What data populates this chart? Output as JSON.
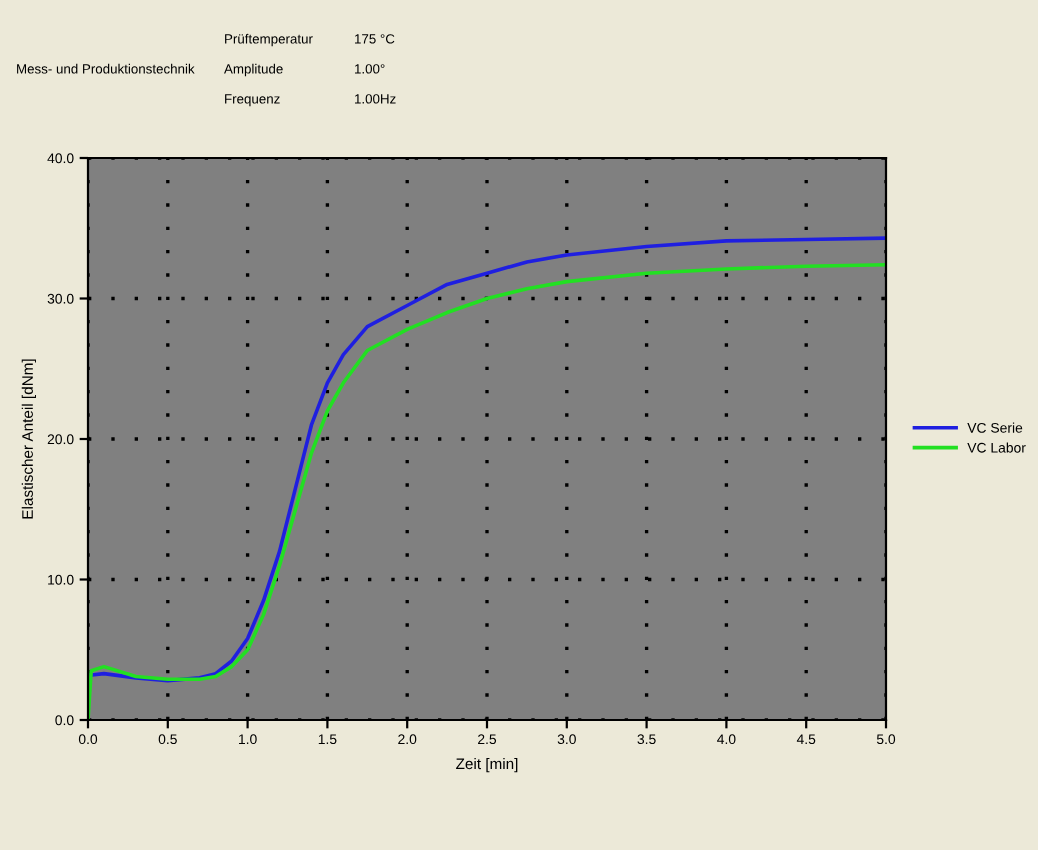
{
  "chart_data": {
    "type": "line",
    "subtitle": "Mess- und Produktionstechnik",
    "annotations": [
      "Prüftemperatur",
      "175 °C",
      "Amplitude",
      "1.00°",
      "Frequenz",
      "1.00Hz"
    ],
    "xlabel": "Zeit [min]",
    "ylabel": "Elastischer Anteil [dNm]",
    "xlim": [
      0,
      5
    ],
    "ylim": [
      0,
      40
    ],
    "xticks": [
      {
        "value": 0,
        "label": "0.0"
      },
      {
        "value": 0.5,
        "label": "0.5"
      },
      {
        "value": 1,
        "label": "1.0"
      },
      {
        "value": 1.5,
        "label": "1.5"
      },
      {
        "value": 2,
        "label": "2.0"
      },
      {
        "value": 2.5,
        "label": "2.5"
      },
      {
        "value": 3,
        "label": "3.0"
      },
      {
        "value": 3.5,
        "label": "3.5"
      },
      {
        "value": 4,
        "label": "4.0"
      },
      {
        "value": 4.5,
        "label": "4.5"
      },
      {
        "value": 5,
        "label": "5.0"
      }
    ],
    "yticks": [
      {
        "value": 0,
        "label": "0.0"
      },
      {
        "value": 10,
        "label": "10.0"
      },
      {
        "value": 20,
        "label": "20.0"
      },
      {
        "value": 30,
        "label": "30.0"
      },
      {
        "value": 40,
        "label": "40.0"
      }
    ],
    "grid": true,
    "legend": "right",
    "marker": "none",
    "line_style": "solid",
    "series": [
      {
        "name": "VC Serie",
        "color": "#1f1fe0",
        "x": [
          0.02,
          0.1,
          0.3,
          0.5,
          0.7,
          0.8,
          0.9,
          1.0,
          1.1,
          1.2,
          1.3,
          1.4,
          1.5,
          1.6,
          1.75,
          2.0,
          2.25,
          2.5,
          2.75,
          3.0,
          3.5,
          4.0,
          4.5,
          5.0
        ],
        "values": [
          3.2,
          3.3,
          3.0,
          2.8,
          3.0,
          3.3,
          4.2,
          5.8,
          8.5,
          12,
          16.5,
          21,
          24,
          26,
          28,
          29.5,
          31,
          31.8,
          32.6,
          33.1,
          33.7,
          34.1,
          34.2,
          34.3
        ]
      },
      {
        "name": "VC Labor",
        "color": "#22e022",
        "x": [
          0,
          0.02,
          0.1,
          0.3,
          0.5,
          0.7,
          0.8,
          0.9,
          1.0,
          1.1,
          1.2,
          1.3,
          1.4,
          1.5,
          1.6,
          1.75,
          2.0,
          2.25,
          2.5,
          2.75,
          3.0,
          3.5,
          4.0,
          4.5,
          5.0
        ],
        "values": [
          0,
          3.5,
          3.8,
          3.1,
          2.9,
          2.9,
          3.1,
          3.8,
          5.0,
          7.5,
          11,
          15,
          19,
          22,
          24,
          26.3,
          27.8,
          29,
          30,
          30.7,
          31.2,
          31.8,
          32.1,
          32.3,
          32.4
        ]
      }
    ]
  }
}
